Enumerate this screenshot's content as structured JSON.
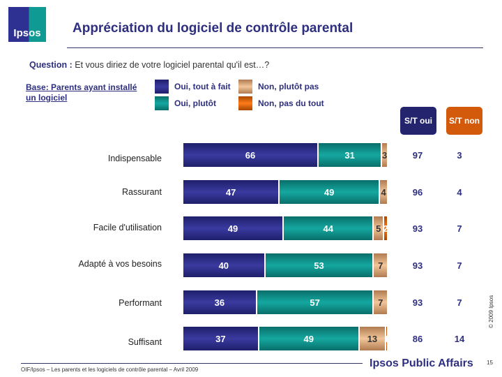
{
  "header": {
    "logo": "Ipsos",
    "title": "Appréciation du logiciel de contrôle parental"
  },
  "question": {
    "label": "Question :",
    "text": " Et vous diriez de votre logiciel parental qu'il est…?"
  },
  "base": "Base: Parents ayant installé un logiciel",
  "colors": {
    "oui_tout_a_fait": "#2e2f8f",
    "oui_plutot": "#0f8f8a",
    "non_plutot_pas": "#d9a77a",
    "non_pas_du_tout": "#e06a10"
  },
  "chart_data": {
    "type": "bar",
    "orientation": "horizontal",
    "stacked": true,
    "categories": [
      "Indispensable",
      "Rassurant",
      "Facile d'utilisation",
      "Adapté à vos besoins",
      "Performant",
      "Suffisant"
    ],
    "series": [
      {
        "name": "Oui, tout à fait",
        "values": [
          66,
          47,
          49,
          40,
          36,
          37
        ]
      },
      {
        "name": "Oui, plutôt",
        "values": [
          31,
          49,
          44,
          53,
          57,
          49
        ]
      },
      {
        "name": "Non, plutôt pas",
        "values": [
          3,
          4,
          5,
          7,
          7,
          13
        ]
      },
      {
        "name": "Non, pas du tout",
        "values": [
          0,
          0,
          2,
          0,
          0,
          1
        ]
      }
    ],
    "totals_headers": [
      "S/T oui",
      "S/T non"
    ],
    "st_oui": [
      97,
      96,
      93,
      93,
      93,
      86
    ],
    "st_non": [
      3,
      4,
      7,
      7,
      7,
      14
    ],
    "xlim": [
      0,
      100
    ]
  },
  "footer": {
    "source": "OIF/Ipsos – Les parents et les logiciels de contrôle parental – Avril 2009",
    "brand": "Ipsos Public Affairs",
    "page": "15",
    "copyright": "© 2009 Ipsos"
  }
}
